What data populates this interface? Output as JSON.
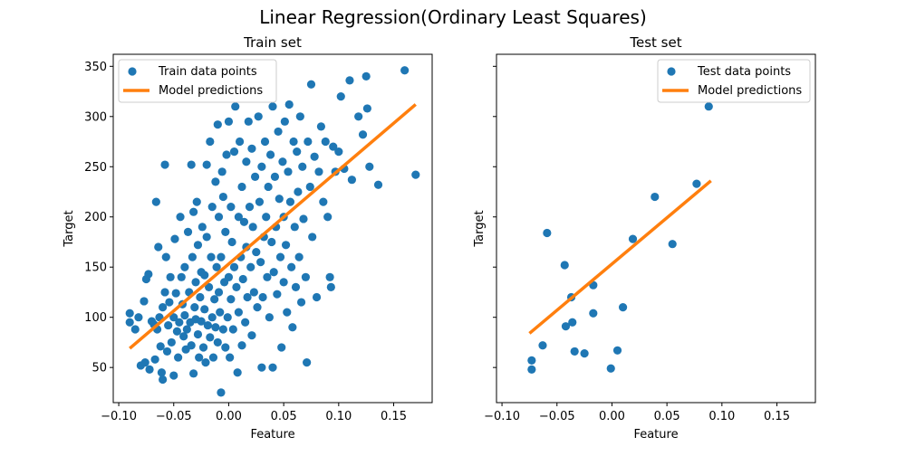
{
  "suptitle": "Linear Regression(Ordinary Least Squares)",
  "colors": {
    "points": "#1f77b4",
    "line": "#ff7f0e"
  },
  "chart_data": [
    {
      "type": "scatter",
      "title": "Train set",
      "xlabel": "Feature",
      "ylabel": "Target",
      "xlim": [
        -0.105,
        0.185
      ],
      "ylim": [
        15,
        362
      ],
      "xticks": [
        -0.1,
        -0.05,
        0.0,
        0.05,
        0.1,
        0.15
      ],
      "xtick_labels": [
        "−0.10",
        "−0.05",
        "0.00",
        "0.05",
        "0.10",
        "0.15"
      ],
      "yticks": [
        50,
        100,
        150,
        200,
        250,
        300,
        350
      ],
      "ytick_labels": [
        "50",
        "100",
        "150",
        "200",
        "250",
        "300",
        "350"
      ],
      "legend": {
        "placement": "upper left",
        "entries": [
          "Train data points",
          "Model predictions"
        ]
      },
      "series": [
        {
          "name": "Train data points",
          "kind": "points",
          "points": [
            [
              -0.09,
              104
            ],
            [
              -0.09,
              95
            ],
            [
              -0.085,
              88
            ],
            [
              -0.082,
              100
            ],
            [
              -0.08,
              52
            ],
            [
              -0.077,
              116
            ],
            [
              -0.076,
              55
            ],
            [
              -0.075,
              138
            ],
            [
              -0.073,
              143
            ],
            [
              -0.072,
              48
            ],
            [
              -0.07,
              96
            ],
            [
              -0.068,
              93
            ],
            [
              -0.067,
              58
            ],
            [
              -0.066,
              215
            ],
            [
              -0.065,
              88
            ],
            [
              -0.064,
              170
            ],
            [
              -0.063,
              100
            ],
            [
              -0.062,
              71
            ],
            [
              -0.061,
              45
            ],
            [
              -0.06,
              38
            ],
            [
              -0.06,
              110
            ],
            [
              -0.058,
              252
            ],
            [
              -0.058,
              125
            ],
            [
              -0.057,
              160
            ],
            [
              -0.056,
              66
            ],
            [
              -0.055,
              92
            ],
            [
              -0.054,
              115
            ],
            [
              -0.053,
              140
            ],
            [
              -0.052,
              75
            ],
            [
              -0.05,
              42
            ],
            [
              -0.05,
              100
            ],
            [
              -0.049,
              178
            ],
            [
              -0.048,
              124
            ],
            [
              -0.047,
              86
            ],
            [
              -0.046,
              60
            ],
            [
              -0.045,
              95
            ],
            [
              -0.044,
              200
            ],
            [
              -0.043,
              140
            ],
            [
              -0.042,
              113
            ],
            [
              -0.041,
              81
            ],
            [
              -0.04,
              150
            ],
            [
              -0.04,
              102
            ],
            [
              -0.039,
              68
            ],
            [
              -0.038,
              88
            ],
            [
              -0.037,
              185
            ],
            [
              -0.036,
              125
            ],
            [
              -0.035,
              95
            ],
            [
              -0.034,
              252
            ],
            [
              -0.034,
              72
            ],
            [
              -0.033,
              160
            ],
            [
              -0.032,
              205
            ],
            [
              -0.032,
              44
            ],
            [
              -0.031,
              110
            ],
            [
              -0.03,
              135
            ],
            [
              -0.03,
              98
            ],
            [
              -0.029,
              215
            ],
            [
              -0.028,
              172
            ],
            [
              -0.028,
              83
            ],
            [
              -0.027,
              60
            ],
            [
              -0.026,
              120
            ],
            [
              -0.025,
              145
            ],
            [
              -0.025,
              96
            ],
            [
              -0.024,
              190
            ],
            [
              -0.023,
              70
            ],
            [
              -0.022,
              142
            ],
            [
              -0.022,
              108
            ],
            [
              -0.021,
              55
            ],
            [
              -0.02,
              252
            ],
            [
              -0.02,
              180
            ],
            [
              -0.019,
              92
            ],
            [
              -0.018,
              130
            ],
            [
              -0.017,
              275
            ],
            [
              -0.017,
              80
            ],
            [
              -0.016,
              160
            ],
            [
              -0.015,
              100
            ],
            [
              -0.015,
              210
            ],
            [
              -0.014,
              60
            ],
            [
              -0.013,
              118
            ],
            [
              -0.012,
              235
            ],
            [
              -0.012,
              90
            ],
            [
              -0.011,
              150
            ],
            [
              -0.01,
              292
            ],
            [
              -0.01,
              75
            ],
            [
              -0.009,
              200
            ],
            [
              -0.009,
              125
            ],
            [
              -0.008,
              105
            ],
            [
              -0.007,
              25
            ],
            [
              -0.007,
              160
            ],
            [
              -0.006,
              245
            ],
            [
              -0.005,
              88
            ],
            [
              -0.005,
              220
            ],
            [
              -0.004,
              135
            ],
            [
              -0.003,
              70
            ],
            [
              -0.003,
              185
            ],
            [
              -0.002,
              262
            ],
            [
              -0.001,
              100
            ],
            [
              0.0,
              295
            ],
            [
              0.0,
              140
            ],
            [
              0.001,
              60
            ],
            [
              0.002,
              210
            ],
            [
              0.002,
              118
            ],
            [
              0.003,
              175
            ],
            [
              0.004,
              88
            ],
            [
              0.005,
              265
            ],
            [
              0.005,
              150
            ],
            [
              0.006,
              310
            ],
            [
              0.007,
              130
            ],
            [
              0.008,
              45
            ],
            [
              0.009,
              200
            ],
            [
              0.009,
              105
            ],
            [
              0.01,
              275
            ],
            [
              0.011,
              160
            ],
            [
              0.012,
              72
            ],
            [
              0.012,
              230
            ],
            [
              0.013,
              138
            ],
            [
              0.014,
              195
            ],
            [
              0.015,
              95
            ],
            [
              0.016,
              255
            ],
            [
              0.016,
              170
            ],
            [
              0.017,
              120
            ],
            [
              0.018,
              295
            ],
            [
              0.019,
              210
            ],
            [
              0.02,
              150
            ],
            [
              0.021,
              82
            ],
            [
              0.021,
              268
            ],
            [
              0.022,
              190
            ],
            [
              0.023,
              125
            ],
            [
              0.024,
              240
            ],
            [
              0.025,
              165
            ],
            [
              0.026,
              110
            ],
            [
              0.027,
              300
            ],
            [
              0.028,
              215
            ],
            [
              0.029,
              155
            ],
            [
              0.03,
              250
            ],
            [
              0.03,
              50
            ],
            [
              0.031,
              120
            ],
            [
              0.032,
              180
            ],
            [
              0.033,
              275
            ],
            [
              0.034,
              200
            ],
            [
              0.035,
              140
            ],
            [
              0.036,
              230
            ],
            [
              0.037,
              100
            ],
            [
              0.038,
              262
            ],
            [
              0.039,
              175
            ],
            [
              0.04,
              310
            ],
            [
              0.04,
              50
            ],
            [
              0.041,
              145
            ],
            [
              0.042,
              240
            ],
            [
              0.043,
              190
            ],
            [
              0.044,
              123
            ],
            [
              0.045,
              285
            ],
            [
              0.046,
              218
            ],
            [
              0.047,
              160
            ],
            [
              0.048,
              70
            ],
            [
              0.049,
              255
            ],
            [
              0.05,
              200
            ],
            [
              0.05,
              135
            ],
            [
              0.051,
              295
            ],
            [
              0.052,
              172
            ],
            [
              0.053,
              105
            ],
            [
              0.054,
              245
            ],
            [
              0.055,
              312
            ],
            [
              0.056,
              215
            ],
            [
              0.057,
              150
            ],
            [
              0.058,
              90
            ],
            [
              0.059,
              275
            ],
            [
              0.06,
              190
            ],
            [
              0.061,
              130
            ],
            [
              0.062,
              265
            ],
            [
              0.063,
              225
            ],
            [
              0.064,
              160
            ],
            [
              0.065,
              300
            ],
            [
              0.066,
              115
            ],
            [
              0.067,
              250
            ],
            [
              0.068,
              198
            ],
            [
              0.07,
              140
            ],
            [
              0.071,
              55
            ],
            [
              0.072,
              275
            ],
            [
              0.074,
              230
            ],
            [
              0.075,
              332
            ],
            [
              0.076,
              180
            ],
            [
              0.078,
              260
            ],
            [
              0.08,
              120
            ],
            [
              0.082,
              245
            ],
            [
              0.084,
              290
            ],
            [
              0.086,
              215
            ],
            [
              0.088,
              275
            ],
            [
              0.09,
              200
            ],
            [
              0.092,
              140
            ],
            [
              0.093,
              130
            ],
            [
              0.095,
              270
            ],
            [
              0.097,
              245
            ],
            [
              0.1,
              265
            ],
            [
              0.102,
              320
            ],
            [
              0.105,
              248
            ],
            [
              0.11,
              336
            ],
            [
              0.112,
              237
            ],
            [
              0.118,
              300
            ],
            [
              0.122,
              282
            ],
            [
              0.125,
              340
            ],
            [
              0.126,
              308
            ],
            [
              0.128,
              250
            ],
            [
              0.136,
              232
            ],
            [
              0.16,
              346
            ],
            [
              0.17,
              242
            ]
          ]
        },
        {
          "name": "Model predictions",
          "kind": "line",
          "points": [
            [
              -0.09,
              69
            ],
            [
              0.17,
              312
            ]
          ]
        }
      ]
    },
    {
      "type": "scatter",
      "title": "Test set",
      "xlabel": "Feature",
      "ylabel": "Target",
      "xlim": [
        -0.105,
        0.185
      ],
      "ylim": [
        15,
        362
      ],
      "xticks": [
        -0.1,
        -0.05,
        0.0,
        0.05,
        0.1,
        0.15
      ],
      "xtick_labels": [
        "−0.10",
        "−0.05",
        "0.00",
        "0.05",
        "0.10",
        "0.15"
      ],
      "yticks": [
        50,
        100,
        150,
        200,
        250,
        300,
        350
      ],
      "ytick_labels": [
        "",
        "",
        "",
        "",
        "",
        "",
        ""
      ],
      "legend": {
        "placement": "upper right",
        "entries": [
          "Test data points",
          "Model predictions"
        ]
      },
      "series": [
        {
          "name": "Test data points",
          "kind": "points",
          "points": [
            [
              -0.073,
              48
            ],
            [
              -0.073,
              57
            ],
            [
              -0.063,
              72
            ],
            [
              -0.059,
              184
            ],
            [
              -0.043,
              152
            ],
            [
              -0.042,
              91
            ],
            [
              -0.036,
              95
            ],
            [
              -0.037,
              120
            ],
            [
              -0.034,
              66
            ],
            [
              -0.025,
              64
            ],
            [
              -0.017,
              132
            ],
            [
              -0.017,
              104
            ],
            [
              -0.001,
              49
            ],
            [
              0.005,
              67
            ],
            [
              0.01,
              110
            ],
            [
              0.019,
              178
            ],
            [
              0.039,
              220
            ],
            [
              0.055,
              173
            ],
            [
              0.077,
              233
            ],
            [
              0.088,
              310
            ]
          ]
        },
        {
          "name": "Model predictions",
          "kind": "line",
          "points": [
            [
              -0.075,
              84
            ],
            [
              0.09,
              236
            ]
          ]
        }
      ]
    }
  ]
}
